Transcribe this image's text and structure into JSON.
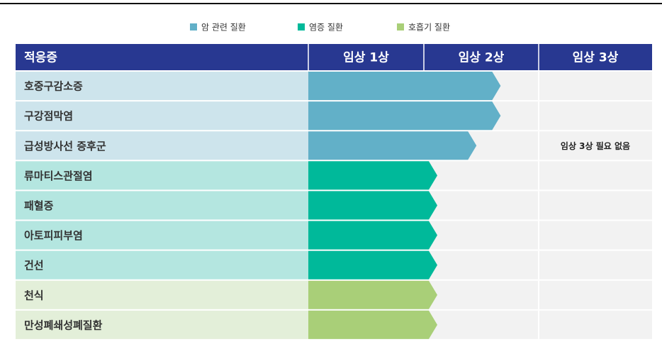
{
  "legend": [
    {
      "name": "암 관련 질환",
      "color": "#62b0c8",
      "light": "#cde4ec"
    },
    {
      "name": "염증 질환",
      "color": "#00b99a",
      "light": "#b4e6e0"
    },
    {
      "name": "호흡기 질환",
      "color": "#a9cf78",
      "light": "#e3efd9"
    }
  ],
  "header": [
    "적응증",
    "임상 1상",
    "임상 2상",
    "임상 3상"
  ],
  "header_color": "#283891",
  "rows": [
    {
      "label": "호중구감소증",
      "group": 0,
      "progress": 1.67
    },
    {
      "label": "구강점막염",
      "group": 0,
      "progress": 1.67
    },
    {
      "label": "급성방사선 증후군",
      "group": 0,
      "progress": 1.46,
      "note": "임상 3상 필요 없음"
    },
    {
      "label": "류마티스관절염",
      "group": 1,
      "progress": 1.12
    },
    {
      "label": "패혈증",
      "group": 1,
      "progress": 1.12
    },
    {
      "label": "아토피피부염",
      "group": 1,
      "progress": 1.12
    },
    {
      "label": "건선",
      "group": 1,
      "progress": 1.12
    },
    {
      "label": "천식",
      "group": 2,
      "progress": 1.12
    },
    {
      "label": "만성폐쇄성폐질환",
      "group": 2,
      "progress": 1.12
    }
  ]
}
